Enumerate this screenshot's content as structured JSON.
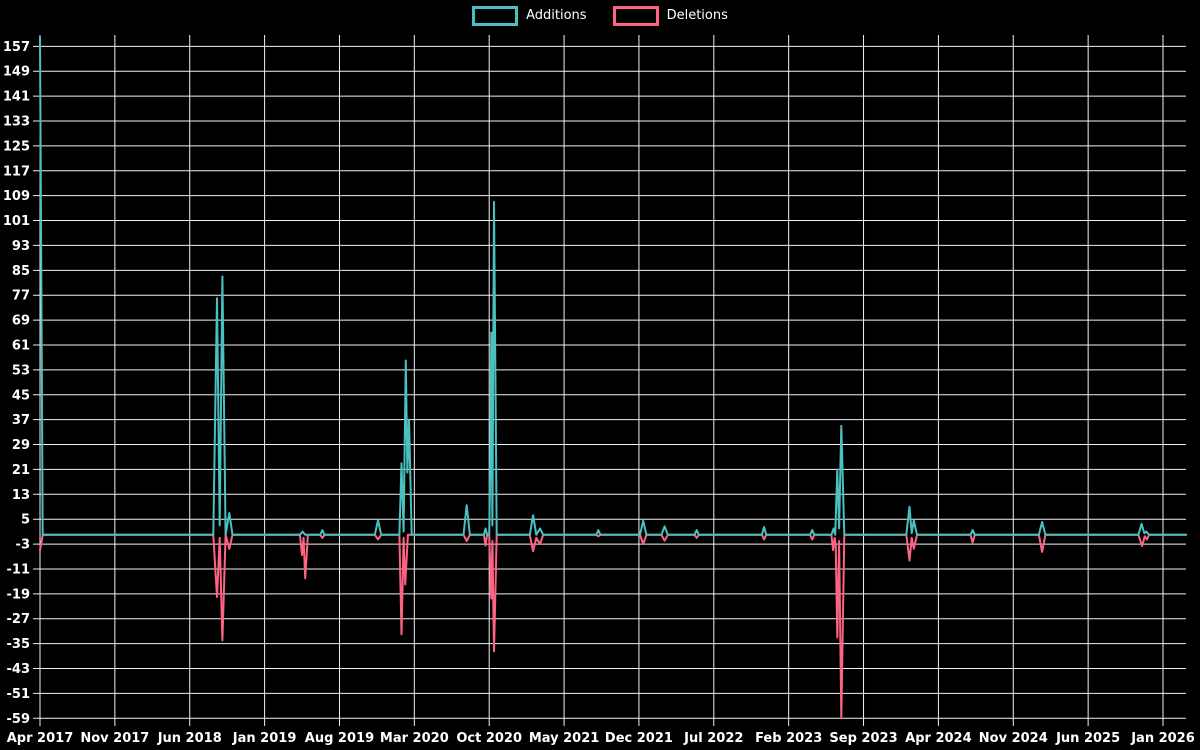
{
  "legend": {
    "items": [
      {
        "label": "Additions",
        "color": "#4bc0c0"
      },
      {
        "label": "Deletions",
        "color": "#ff6384"
      }
    ]
  },
  "colors": {
    "background": "#000000",
    "text": "#ffffff",
    "grid": "#f2f2f2",
    "additions": "#4bc0c0",
    "deletions": "#ff6384"
  },
  "chart_data": {
    "type": "line",
    "title": "",
    "xlabel": "",
    "ylabel": "",
    "legend_position": "top",
    "grid": true,
    "x_axis": {
      "unit": "months offset from Apr 2017",
      "tick_label_every_n_months": 7,
      "tick_labels": [
        "Apr 2017",
        "Nov 2017",
        "Jun 2018",
        "Jan 2019",
        "Aug 2019",
        "Mar 2020",
        "Oct 2020",
        "May 2021",
        "Dec 2021",
        "Jul 2022",
        "Feb 2023",
        "Sep 2023",
        "Apr 2024",
        "Nov 2024",
        "Jun 2025",
        "Jan 2026"
      ],
      "data_extends_to_month_offset": 107.2
    },
    "y_axis": {
      "min": -59,
      "max": 160,
      "tick_step": 8,
      "tick_labels": [
        157,
        149,
        141,
        133,
        125,
        117,
        109,
        101,
        93,
        85,
        77,
        69,
        61,
        53,
        45,
        37,
        29,
        21,
        13,
        5,
        -3,
        -11,
        -19,
        -27,
        -35,
        -43,
        -51,
        -59
      ]
    },
    "series": [
      {
        "name": "Additions",
        "color": "#4bc0c0",
        "points": [
          [
            0,
            160
          ],
          [
            0.25,
            0
          ],
          [
            16.2,
            0
          ],
          [
            16.55,
            76
          ],
          [
            16.8,
            3
          ],
          [
            17.05,
            83
          ],
          [
            17.35,
            0
          ],
          [
            17.7,
            7
          ],
          [
            18.0,
            0
          ],
          [
            24.3,
            0
          ],
          [
            24.55,
            1
          ],
          [
            24.8,
            0
          ],
          [
            26.2,
            0
          ],
          [
            26.4,
            1.5
          ],
          [
            26.6,
            0
          ],
          [
            31.3,
            0
          ],
          [
            31.6,
            4.6
          ],
          [
            31.9,
            0
          ],
          [
            33.6,
            0
          ],
          [
            33.8,
            23
          ],
          [
            34.0,
            1
          ],
          [
            34.2,
            56
          ],
          [
            34.35,
            20
          ],
          [
            34.5,
            37
          ],
          [
            34.75,
            0
          ],
          [
            39.6,
            0
          ],
          [
            39.9,
            9.5
          ],
          [
            40.2,
            0
          ],
          [
            41.5,
            0
          ],
          [
            41.65,
            2
          ],
          [
            41.8,
            0
          ],
          [
            42.0,
            0
          ],
          [
            42.1,
            22
          ],
          [
            42.2,
            65
          ],
          [
            42.3,
            3
          ],
          [
            42.45,
            107
          ],
          [
            42.7,
            0
          ],
          [
            45.8,
            0
          ],
          [
            46.1,
            6.3
          ],
          [
            46.4,
            0
          ],
          [
            46.75,
            2
          ],
          [
            47.05,
            0
          ],
          [
            52.0,
            0
          ],
          [
            52.2,
            1.5
          ],
          [
            52.4,
            0
          ],
          [
            56.1,
            0
          ],
          [
            56.4,
            4.5
          ],
          [
            56.7,
            0
          ],
          [
            58.1,
            0
          ],
          [
            58.4,
            2.7
          ],
          [
            58.7,
            0
          ],
          [
            61.2,
            0
          ],
          [
            61.4,
            1.5
          ],
          [
            61.6,
            0
          ],
          [
            67.5,
            0
          ],
          [
            67.7,
            2.5
          ],
          [
            67.9,
            0
          ],
          [
            72.0,
            0
          ],
          [
            72.2,
            1.5
          ],
          [
            72.4,
            0
          ],
          [
            74.0,
            0
          ],
          [
            74.2,
            2
          ],
          [
            74.35,
            0
          ],
          [
            74.55,
            21
          ],
          [
            74.72,
            2
          ],
          [
            74.92,
            35
          ],
          [
            75.2,
            0
          ],
          [
            81.0,
            0
          ],
          [
            81.3,
            9
          ],
          [
            81.5,
            0.5
          ],
          [
            81.7,
            4.6
          ],
          [
            82.0,
            0
          ],
          [
            87.0,
            0
          ],
          [
            87.2,
            1.5
          ],
          [
            87.4,
            0
          ],
          [
            93.4,
            0
          ],
          [
            93.7,
            4.1
          ],
          [
            94.0,
            0
          ],
          [
            102.7,
            0
          ],
          [
            103.0,
            3.5
          ],
          [
            103.25,
            0.5
          ],
          [
            103.45,
            1
          ],
          [
            103.7,
            0
          ],
          [
            107.16,
            0
          ]
        ]
      },
      {
        "name": "Deletions",
        "color": "#ff6384",
        "points": [
          [
            0,
            -5
          ],
          [
            0.25,
            0
          ],
          [
            16.2,
            0
          ],
          [
            16.55,
            -20
          ],
          [
            16.8,
            -1
          ],
          [
            17.05,
            -34
          ],
          [
            17.35,
            0
          ],
          [
            17.7,
            -4.5
          ],
          [
            18.0,
            0
          ],
          [
            24.3,
            0
          ],
          [
            24.5,
            -6.5
          ],
          [
            24.65,
            -1
          ],
          [
            24.8,
            -14
          ],
          [
            25.05,
            0
          ],
          [
            26.2,
            0
          ],
          [
            26.4,
            -1
          ],
          [
            26.6,
            0
          ],
          [
            31.3,
            0
          ],
          [
            31.6,
            -1.5
          ],
          [
            31.9,
            0
          ],
          [
            33.6,
            0
          ],
          [
            33.8,
            -32
          ],
          [
            34.0,
            -1
          ],
          [
            34.15,
            -16
          ],
          [
            34.4,
            0
          ],
          [
            39.6,
            0
          ],
          [
            39.9,
            -2
          ],
          [
            40.2,
            0
          ],
          [
            41.5,
            0
          ],
          [
            41.65,
            -3.5
          ],
          [
            41.8,
            0
          ],
          [
            42.0,
            0
          ],
          [
            42.2,
            -20.5
          ],
          [
            42.3,
            -2
          ],
          [
            42.45,
            -37.5
          ],
          [
            42.7,
            0
          ],
          [
            45.8,
            0
          ],
          [
            46.1,
            -5.3
          ],
          [
            46.4,
            -1
          ],
          [
            46.75,
            -3
          ],
          [
            47.05,
            0
          ],
          [
            52.0,
            0
          ],
          [
            52.2,
            -0.5
          ],
          [
            52.4,
            0
          ],
          [
            56.1,
            0
          ],
          [
            56.4,
            -3
          ],
          [
            56.7,
            0
          ],
          [
            58.1,
            0
          ],
          [
            58.4,
            -1.9
          ],
          [
            58.7,
            0
          ],
          [
            61.2,
            0
          ],
          [
            61.4,
            -1
          ],
          [
            61.6,
            0
          ],
          [
            67.5,
            0
          ],
          [
            67.7,
            -1.5
          ],
          [
            67.9,
            0
          ],
          [
            72.0,
            0
          ],
          [
            72.2,
            -1.5
          ],
          [
            72.4,
            0
          ],
          [
            74.0,
            0
          ],
          [
            74.15,
            -5
          ],
          [
            74.3,
            -1
          ],
          [
            74.4,
            -3
          ],
          [
            74.55,
            -33
          ],
          [
            74.72,
            -2
          ],
          [
            74.92,
            -59
          ],
          [
            75.2,
            0
          ],
          [
            81.0,
            0
          ],
          [
            81.3,
            -8.3
          ],
          [
            81.5,
            -1
          ],
          [
            81.7,
            -4.5
          ],
          [
            82.0,
            0
          ],
          [
            87.0,
            0
          ],
          [
            87.2,
            -2.5
          ],
          [
            87.4,
            0
          ],
          [
            93.4,
            0
          ],
          [
            93.7,
            -5.5
          ],
          [
            94.0,
            0
          ],
          [
            102.7,
            0
          ],
          [
            103.05,
            -3.6
          ],
          [
            103.3,
            -0.5
          ],
          [
            103.5,
            -1.5
          ],
          [
            103.7,
            0
          ],
          [
            107.16,
            0
          ]
        ]
      }
    ]
  }
}
